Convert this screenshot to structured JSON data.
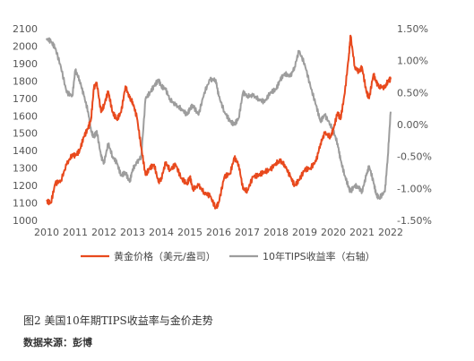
{
  "chart_data": {
    "type": "line",
    "title": "",
    "xlabel": "",
    "ylabel": "",
    "x_ticks": [
      "2010",
      "2011",
      "2012",
      "2013",
      "2014",
      "2015",
      "2016",
      "2017",
      "2018",
      "2019",
      "2020",
      "2021",
      "2022"
    ],
    "y_left_ticks": [
      "2100",
      "2000",
      "1900",
      "1800",
      "1700",
      "1600",
      "1500",
      "1400",
      "1300",
      "1200",
      "1100",
      "1000"
    ],
    "y_right_ticks": [
      "1.50%",
      "1.00%",
      "0.50%",
      "0.00%",
      "-0.50%",
      "-1.00%",
      "-1.50%"
    ],
    "ylim_left": [
      1000,
      2100
    ],
    "ylim_right": [
      -1.5,
      1.5
    ],
    "xlim": [
      2010,
      2022
    ],
    "legend_placement": "bottom",
    "series": [
      {
        "name": "黄金价格（美元/盎司）",
        "axis": "left",
        "color": "#e8491d",
        "x": [
          2010.0,
          2010.15,
          2010.3,
          2010.5,
          2010.7,
          2010.9,
          2011.0,
          2011.15,
          2011.3,
          2011.45,
          2011.55,
          2011.65,
          2011.75,
          2011.9,
          2012.0,
          2012.15,
          2012.3,
          2012.45,
          2012.6,
          2012.75,
          2012.9,
          2013.0,
          2013.15,
          2013.3,
          2013.45,
          2013.6,
          2013.75,
          2013.9,
          2014.0,
          2014.15,
          2014.3,
          2014.5,
          2014.7,
          2014.9,
          2015.0,
          2015.1,
          2015.3,
          2015.5,
          2015.7,
          2015.9,
          2016.0,
          2016.2,
          2016.4,
          2016.55,
          2016.7,
          2016.85,
          2017.0,
          2017.2,
          2017.4,
          2017.6,
          2017.8,
          2018.0,
          2018.15,
          2018.3,
          2018.5,
          2018.65,
          2018.8,
          2019.0,
          2019.2,
          2019.4,
          2019.55,
          2019.7,
          2019.9,
          2020.0,
          2020.15,
          2020.25,
          2020.4,
          2020.55,
          2020.6,
          2020.75,
          2020.9,
          2021.0,
          2021.15,
          2021.25,
          2021.4,
          2021.5,
          2021.6,
          2021.8,
          2021.9,
          2022.0
        ],
        "values": [
          1110,
          1100,
          1210,
          1230,
          1320,
          1380,
          1370,
          1400,
          1480,
          1530,
          1580,
          1760,
          1790,
          1620,
          1660,
          1740,
          1620,
          1580,
          1620,
          1770,
          1700,
          1680,
          1590,
          1420,
          1260,
          1300,
          1320,
          1220,
          1240,
          1330,
          1290,
          1320,
          1240,
          1210,
          1250,
          1180,
          1200,
          1160,
          1140,
          1070,
          1100,
          1250,
          1270,
          1360,
          1320,
          1180,
          1170,
          1250,
          1260,
          1280,
          1290,
          1330,
          1340,
          1320,
          1250,
          1200,
          1230,
          1290,
          1300,
          1340,
          1440,
          1500,
          1480,
          1520,
          1620,
          1580,
          1730,
          1960,
          2060,
          1880,
          1850,
          1880,
          1740,
          1700,
          1840,
          1790,
          1770,
          1760,
          1800,
          1810
        ]
      },
      {
        "name": "10年TIPS收益率（右轴）",
        "axis": "right",
        "color": "#9d9d9d",
        "x": [
          2010.0,
          2010.15,
          2010.3,
          2010.5,
          2010.7,
          2010.9,
          2011.0,
          2011.15,
          2011.3,
          2011.45,
          2011.55,
          2011.65,
          2011.75,
          2011.9,
          2012.0,
          2012.15,
          2012.3,
          2012.45,
          2012.6,
          2012.75,
          2012.9,
          2013.0,
          2013.15,
          2013.3,
          2013.45,
          2013.6,
          2013.75,
          2013.9,
          2014.0,
          2014.15,
          2014.3,
          2014.5,
          2014.7,
          2014.9,
          2015.0,
          2015.1,
          2015.3,
          2015.5,
          2015.7,
          2015.9,
          2016.0,
          2016.2,
          2016.4,
          2016.55,
          2016.7,
          2016.85,
          2017.0,
          2017.2,
          2017.4,
          2017.6,
          2017.8,
          2018.0,
          2018.15,
          2018.3,
          2018.5,
          2018.65,
          2018.8,
          2019.0,
          2019.2,
          2019.4,
          2019.55,
          2019.7,
          2019.9,
          2020.0,
          2020.15,
          2020.25,
          2020.4,
          2020.55,
          2020.6,
          2020.75,
          2020.9,
          2021.0,
          2021.15,
          2021.25,
          2021.4,
          2021.5,
          2021.6,
          2021.8,
          2021.9,
          2022.0
        ],
        "values": [
          1.35,
          1.3,
          1.2,
          0.9,
          0.5,
          0.45,
          0.85,
          0.7,
          0.45,
          0.2,
          -0.1,
          -0.2,
          -0.1,
          -0.5,
          -0.6,
          -0.3,
          -0.5,
          -0.6,
          -0.8,
          -0.75,
          -0.9,
          -0.7,
          -0.6,
          -0.5,
          0.4,
          0.5,
          0.6,
          0.7,
          0.6,
          0.55,
          0.4,
          0.3,
          0.25,
          0.15,
          0.25,
          0.3,
          0.15,
          0.5,
          0.7,
          0.7,
          0.45,
          0.2,
          0.05,
          0.0,
          0.1,
          0.5,
          0.45,
          0.45,
          0.4,
          0.35,
          0.5,
          0.55,
          0.7,
          0.8,
          0.75,
          0.9,
          1.15,
          0.95,
          0.6,
          0.3,
          0.05,
          0.15,
          0.0,
          -0.1,
          -0.3,
          -0.55,
          -0.8,
          -1.0,
          -1.05,
          -0.95,
          -1.0,
          -1.05,
          -0.8,
          -0.65,
          -0.9,
          -1.1,
          -1.15,
          -1.05,
          -0.5,
          0.2
        ]
      }
    ]
  },
  "legend": {
    "gold_label": "黄金价格（美元/盎司）",
    "tips_label": "10年TIPS收益率（右轴）"
  },
  "caption": "图2 美国10年期TIPS收益率与金价走势",
  "source": "数据来源：彭博"
}
